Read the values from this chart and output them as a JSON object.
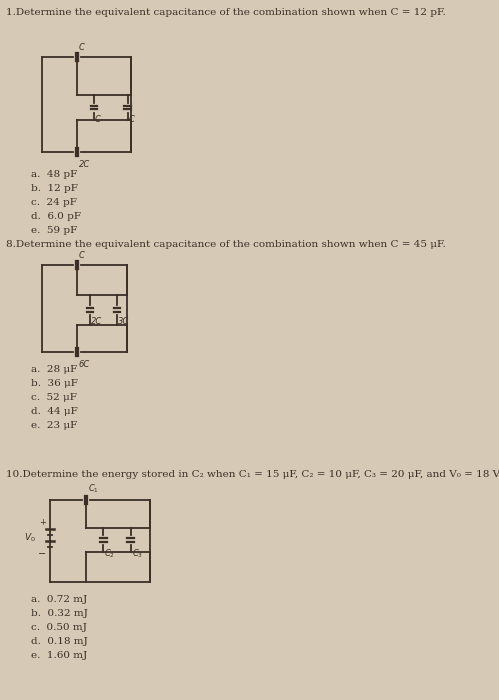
{
  "bg_color": "#d6c9b5",
  "text_color": "#3a3028",
  "q1_title": "1.Determine the equivalent capacitance of the combination shown when C = 12 pF.",
  "q1_choices": [
    "a.  48 pF",
    "b.  12 pF",
    "c.  24 pF",
    "d.  6.0 pF",
    "e.  59 pF"
  ],
  "q8_title": "8.Determine the equivalent capacitance of the combination shown when C = 45 μF.",
  "q8_choices": [
    "a.  28 μF",
    "b.  36 μF",
    "c.  52 μF",
    "d.  44 μF",
    "e.  23 μF"
  ],
  "q10_title": "10.Determine the energy stored in C₂ when C₁ = 15 μF, C₂ = 10 μF, C₃ = 20 μF, and V₀ = 18 V.",
  "q10_choices": [
    "a.  0.72 mJ",
    "b.  0.32 mJ",
    "c.  0.50 mJ",
    "d.  0.18 mJ",
    "e.  1.60 mJ"
  ]
}
